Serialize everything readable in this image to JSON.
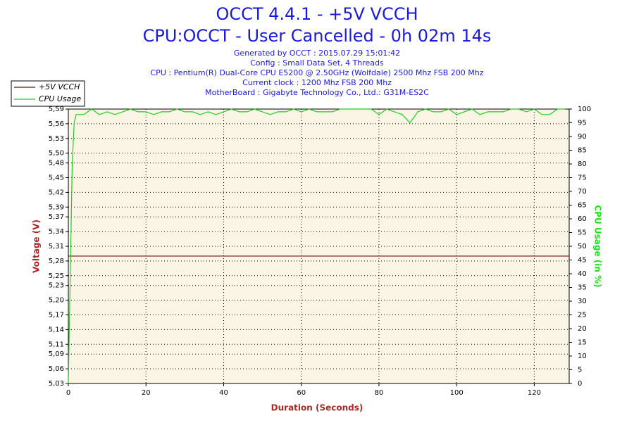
{
  "chart_data": {
    "type": "line",
    "title": "OCCT 4.4.1 - +5V VCCH",
    "subtitle": "CPU:OCCT - User Cancelled - 0h 02m 14s",
    "info": [
      "Generated by OCCT : 2015.07.29 15:01:42",
      "Config : Small Data Set, 4 Threads",
      "CPU : Pentium(R) Dual-Core CPU E5200 @ 2.50GHz (Wolfdale) 2500 Mhz FSB 200 Mhz",
      "Current clock : 1200 Mhz FSB 200 Mhz",
      "MotherBoard : Gigabyte Technology Co., Ltd.: G31M-ES2C"
    ],
    "xlabel": "Duration (Seconds)",
    "ylabel": "Voltage (V)",
    "y2label": "CPU Usage (in %)",
    "xlim": [
      0,
      129
    ],
    "xticks": [
      0,
      20,
      40,
      60,
      80,
      100,
      120
    ],
    "ylim": [
      5.03,
      5.59
    ],
    "yticks": [
      {
        "value": 5.03,
        "label": "5,03"
      },
      {
        "value": 5.06,
        "label": "5,06"
      },
      {
        "value": 5.09,
        "label": "5,09"
      },
      {
        "value": 5.11,
        "label": "5,11"
      },
      {
        "value": 5.14,
        "label": "5,14"
      },
      {
        "value": 5.17,
        "label": "5,17"
      },
      {
        "value": 5.2,
        "label": "5,20"
      },
      {
        "value": 5.23,
        "label": "5,23"
      },
      {
        "value": 5.25,
        "label": "5,25"
      },
      {
        "value": 5.28,
        "label": "5,28"
      },
      {
        "value": 5.31,
        "label": "5,31"
      },
      {
        "value": 5.34,
        "label": "5,34"
      },
      {
        "value": 5.37,
        "label": "5,37"
      },
      {
        "value": 5.39,
        "label": "5,39"
      },
      {
        "value": 5.42,
        "label": "5,42"
      },
      {
        "value": 5.45,
        "label": "5,45"
      },
      {
        "value": 5.48,
        "label": "5,48"
      },
      {
        "value": 5.5,
        "label": "5,50"
      },
      {
        "value": 5.53,
        "label": "5,53"
      },
      {
        "value": 5.56,
        "label": "5,56"
      },
      {
        "value": 5.59,
        "label": "5,59"
      }
    ],
    "y2lim": [
      0,
      100
    ],
    "y2ticks": [
      0,
      5,
      10,
      15,
      20,
      25,
      30,
      35,
      40,
      45,
      50,
      55,
      60,
      65,
      70,
      75,
      80,
      85,
      90,
      95,
      100
    ],
    "grid": true,
    "legend": "top-left",
    "series": [
      {
        "name": "+5V VCCH",
        "color": "#6b1010",
        "x": [
          0,
          129
        ],
        "values": [
          5.29,
          5.29
        ]
      },
      {
        "name": "CPU Usage",
        "color": "#22cc22",
        "axis": "y2",
        "x": [
          0,
          0.5,
          1,
          1.5,
          2,
          4,
          6,
          8,
          10,
          12,
          14,
          16,
          18,
          20,
          22,
          24,
          26,
          28,
          30,
          32,
          34,
          36,
          38,
          40,
          42,
          44,
          46,
          48,
          50,
          52,
          54,
          56,
          58,
          60,
          62,
          64,
          66,
          68,
          70,
          72,
          74,
          76,
          78,
          80,
          82,
          84,
          86,
          88,
          90,
          92,
          94,
          96,
          98,
          100,
          102,
          104,
          106,
          108,
          110,
          112,
          114,
          116,
          118,
          120,
          122,
          124,
          126,
          128
        ],
        "values": [
          0,
          40,
          80,
          95,
          98,
          98,
          100,
          98,
          99,
          98,
          99,
          100,
          99,
          99,
          98,
          99,
          99,
          100,
          99,
          99,
          98,
          99,
          98,
          99,
          100,
          99,
          99,
          100,
          99,
          98,
          99,
          99,
          100,
          99,
          100,
          99,
          99,
          99,
          100,
          100,
          100,
          100,
          100,
          98,
          100,
          99,
          98,
          95,
          99,
          100,
          99,
          99,
          100,
          98,
          99,
          100,
          98,
          99,
          99,
          99,
          100,
          100,
          99,
          100,
          98,
          98,
          100,
          100
        ]
      }
    ]
  }
}
